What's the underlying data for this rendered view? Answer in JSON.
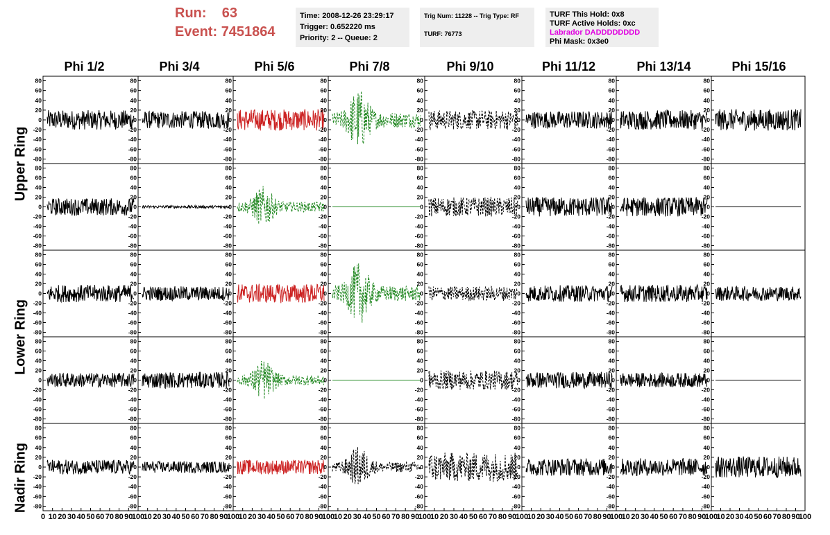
{
  "header": {
    "run_label": "Run:",
    "run_value": "63",
    "event_label": "Event:",
    "event_value": "7451864",
    "time": "Time: 2008-12-26 23:29:17",
    "trigger": "Trigger: 0.652220 ms",
    "priority": "Priority: 2 -- Queue: 2",
    "trig_num": "Trig Num: 11228 -- Trig Type: RF",
    "turf": "TURF: 76773",
    "turf_this_hold": "TURF This Hold: 0x8",
    "turf_active_holds": "TURF Active Holds: 0xc",
    "labrador": "Labrador DADDDDDDDD",
    "phi_mask": "Phi Mask: 0x3e0"
  },
  "colors": {
    "run_text": "#c9514f",
    "labrador_text": "#e000e0",
    "red_trace": "#cc2222",
    "green_trace": "#228822",
    "black_trace": "#000000"
  },
  "columns": [
    "Phi 1/2",
    "Phi 3/4",
    "Phi 5/6",
    "Phi 7/8",
    "Phi 9/10",
    "Phi 11/12",
    "Phi 13/14",
    "Phi 15/16"
  ],
  "rings": [
    "Upper Ring",
    "Lower Ring",
    "Nadir Ring"
  ],
  "chart_data": {
    "type": "line",
    "ylim": [
      -85,
      85
    ],
    "xlim": [
      0,
      100
    ],
    "y_ticks": [
      80,
      60,
      40,
      20,
      0,
      -20,
      -40,
      -60,
      -80
    ],
    "x_ticks": [
      0,
      10,
      20,
      30,
      40,
      50,
      60,
      70,
      80,
      90,
      100
    ],
    "panel_styles": [
      [
        "black",
        "black",
        "red",
        "green-dashed",
        "black-dashed",
        "black",
        "black",
        "black"
      ],
      [
        "black",
        "black",
        "green-dashed",
        "green-flat",
        "black-dashed",
        "black",
        "black",
        "black-flat"
      ],
      [
        "black",
        "black",
        "red",
        "green-dashed",
        "black-dashed",
        "black",
        "black",
        "black"
      ],
      [
        "black",
        "black",
        "green-dashed",
        "green-flat",
        "black-dashed",
        "black",
        "black",
        "black-flat"
      ],
      [
        "black",
        "black",
        "red",
        "black-dashed",
        "black-dashed",
        "black",
        "black",
        "black"
      ]
    ],
    "panel_amplitudes": [
      [
        20,
        18,
        22,
        45,
        20,
        18,
        20,
        22
      ],
      [
        18,
        3,
        30,
        0,
        20,
        20,
        20,
        0
      ],
      [
        18,
        15,
        20,
        45,
        15,
        17,
        18,
        15
      ],
      [
        15,
        17,
        30,
        0,
        20,
        17,
        15,
        0
      ],
      [
        15,
        12,
        15,
        30,
        30,
        18,
        18,
        22
      ]
    ]
  }
}
